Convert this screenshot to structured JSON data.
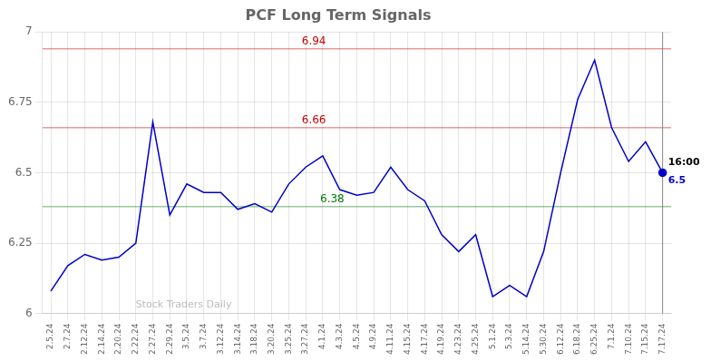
{
  "chart_data": {
    "type": "line",
    "title": "PCF Long Term Signals",
    "categories": [
      "2.5.24",
      "2.7.24",
      "2.12.24",
      "2.14.24",
      "2.20.24",
      "2.22.24",
      "2.27.24",
      "2.29.24",
      "3.5.24",
      "3.7.24",
      "3.12.24",
      "3.14.24",
      "3.18.24",
      "3.20.24",
      "3.25.24",
      "3.27.24",
      "4.1.24",
      "4.3.24",
      "4.5.24",
      "4.9.24",
      "4.11.24",
      "4.15.24",
      "4.17.24",
      "4.19.24",
      "4.23.24",
      "4.25.24",
      "5.1.24",
      "5.3.24",
      "5.14.24",
      "5.30.24",
      "6.12.24",
      "6.18.24",
      "6.25.24",
      "7.1.24",
      "7.10.24",
      "7.15.24",
      "7.17.24"
    ],
    "values": [
      6.08,
      6.17,
      6.21,
      6.19,
      6.2,
      6.25,
      6.68,
      6.35,
      6.46,
      6.43,
      6.43,
      6.37,
      6.39,
      6.36,
      6.46,
      6.52,
      6.56,
      6.44,
      6.42,
      6.43,
      6.52,
      6.44,
      6.4,
      6.28,
      6.22,
      6.28,
      6.06,
      6.1,
      6.06,
      6.22,
      6.5,
      6.76,
      6.9,
      6.66,
      6.54,
      6.61,
      6.5
    ],
    "color": "#0000cc",
    "ylim": [
      6,
      7
    ],
    "yticks": [
      6,
      6.25,
      6.5,
      6.75,
      7
    ],
    "grid": true,
    "reference_lines": [
      {
        "value": 6.94,
        "label": "6.94",
        "color": "#cc0000"
      },
      {
        "value": 6.66,
        "label": "6.66",
        "color": "#cc0000"
      },
      {
        "value": 6.38,
        "label": "6.38",
        "color": "#007700"
      }
    ],
    "vertical_line": "7.17.24",
    "annotations": [
      {
        "text": "16:00",
        "x": "7.17.24",
        "y": 6.5
      },
      {
        "text": "6.5",
        "x": "7.17.24",
        "y": 6.5
      },
      {
        "text": "Stock Traders Daily"
      }
    ]
  }
}
